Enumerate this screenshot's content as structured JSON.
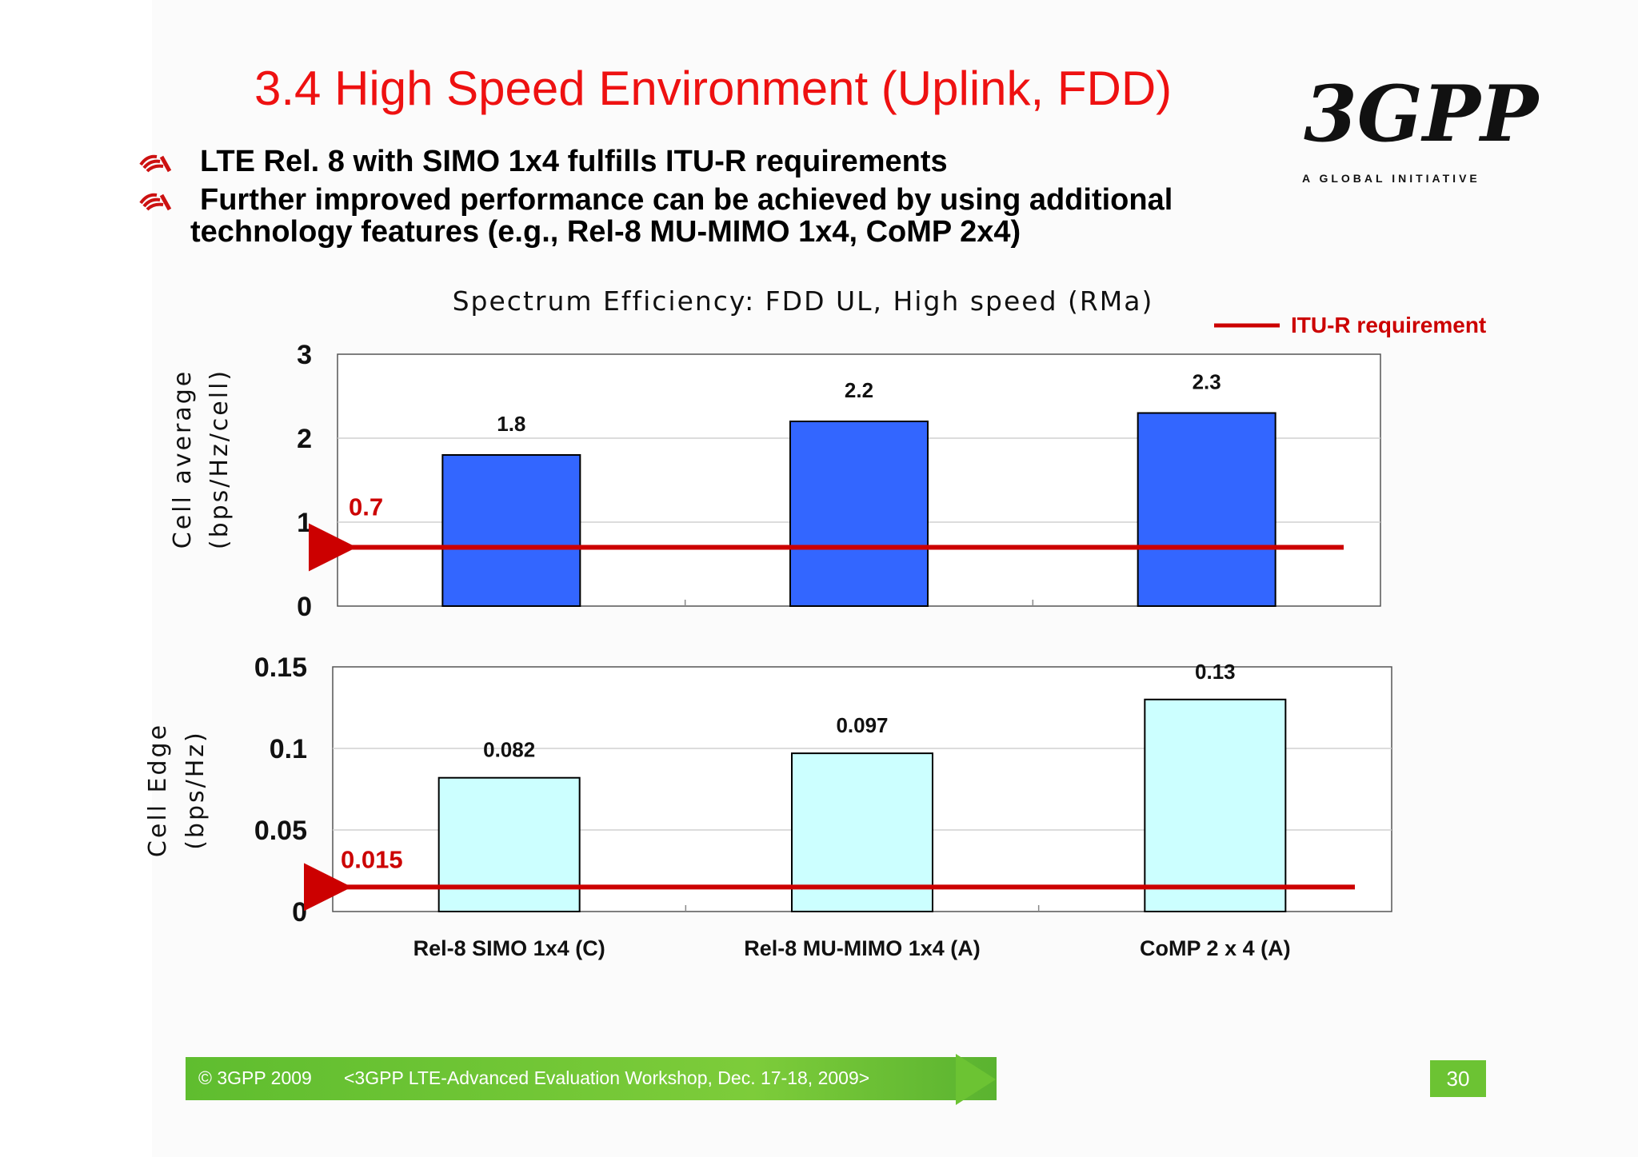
{
  "slide": {
    "title": "3.4 High Speed Environment (Uplink, FDD)",
    "logo_text": "3GPP",
    "logo_tagline": "A GLOBAL INITIATIVE",
    "bullets": [
      {
        "line1": "LTE Rel. 8 with SIMO 1x4 fulfills ITU-R requirements"
      },
      {
        "line1": "Further improved performance can be achieved by using additional",
        "line2": "technology features  (e.g., Rel-8 MU-MIMO 1x4, CoMP 2x4)"
      }
    ],
    "footer_copyright": "© 3GPP 2009",
    "footer_event": "<3GPP LTE-Advanced Evaluation Workshop, Dec. 17-18, 2009>",
    "page_number": "30"
  },
  "chart_data": [
    {
      "type": "bar",
      "title": "Spectrum Efficiency: FDD UL, High speed (RMa)",
      "ylabel": "Cell average (bps/Hz/cell)",
      "categories": [
        "Rel-8 SIMO 1x4 (C)",
        "Rel-8 MU-MIMO 1x4 (A)",
        "CoMP 2 x 4 (A)"
      ],
      "values": [
        1.8,
        2.2,
        2.3
      ],
      "value_labels": [
        "1.8",
        "2.2",
        "2.3"
      ],
      "ylim": [
        0,
        3
      ],
      "yticks": [
        "0",
        "1",
        "2",
        "3"
      ],
      "ytick_values": [
        0,
        1,
        2,
        3
      ],
      "bar_color": "#3366ff",
      "requirement": {
        "name": "ITU-R requirement",
        "value": 0.7,
        "label": "0.7",
        "color": "#cc0000"
      },
      "grid": true,
      "legend": "top-right"
    },
    {
      "type": "bar",
      "ylabel": "Cell Edge (bps/Hz)",
      "categories": [
        "Rel-8 SIMO 1x4 (C)",
        "Rel-8 MU-MIMO 1x4 (A)",
        "CoMP 2 x 4 (A)"
      ],
      "values": [
        0.082,
        0.097,
        0.13
      ],
      "value_labels": [
        "0.082",
        "0.097",
        "0.13"
      ],
      "ylim": [
        0,
        0.15
      ],
      "yticks": [
        "0",
        "0.05",
        "0.1",
        "0.15"
      ],
      "ytick_values": [
        0,
        0.05,
        0.1,
        0.15
      ],
      "bar_color": "#ccffff",
      "requirement": {
        "name": "ITU-R requirement",
        "value": 0.015,
        "label": "0.015",
        "color": "#cc0000"
      },
      "grid": true
    }
  ]
}
